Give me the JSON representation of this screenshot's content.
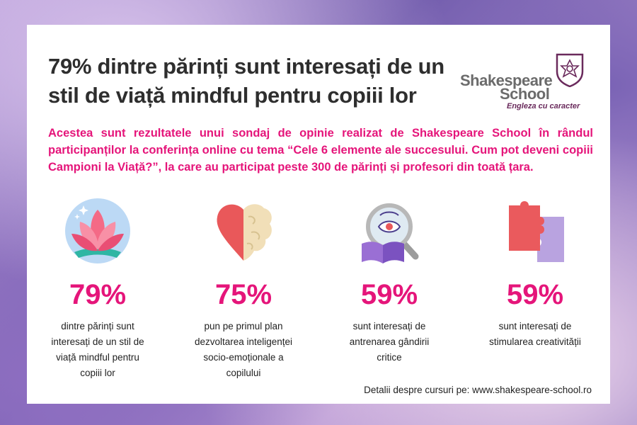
{
  "headline": "79% dintre părinți sunt interesați de un stil de viață mindful pentru copiii lor",
  "logo": {
    "word1": "Shakespeare",
    "word2": "School",
    "tagline": "Engleza cu caracter"
  },
  "intro": "Acestea sunt rezultatele unui sondaj de opinie realizat de Shakespeare School în rândul participanților la conferința online cu tema “Cele 6 elemente ale succesului. Cum pot deveni copiii Campioni la Viață?”, la care au participat peste 300 de părinți și profesori din toată țara.",
  "stats": [
    {
      "icon": "lotus-icon",
      "percent": "79%",
      "text": "dintre părinți sunt interesați de un stil de viață mindful pentru copiii lor"
    },
    {
      "icon": "heart-brain-icon",
      "percent": "75%",
      "text": "pun pe primul plan dezvoltarea inteligenței socio-emoționale a copilului"
    },
    {
      "icon": "magnifier-book-icon",
      "percent": "59%",
      "text": "sunt interesați de antrenarea gândirii critice"
    },
    {
      "icon": "puzzle-icon",
      "percent": "59%",
      "text": "sunt interesați de stimularea creativității"
    }
  ],
  "footer": "Detalii despre cursuri pe: www.shakespeare-school.ro",
  "colors": {
    "accent": "#e5157a",
    "text": "#2e2e2e",
    "logo_purple": "#6a2a5c"
  }
}
